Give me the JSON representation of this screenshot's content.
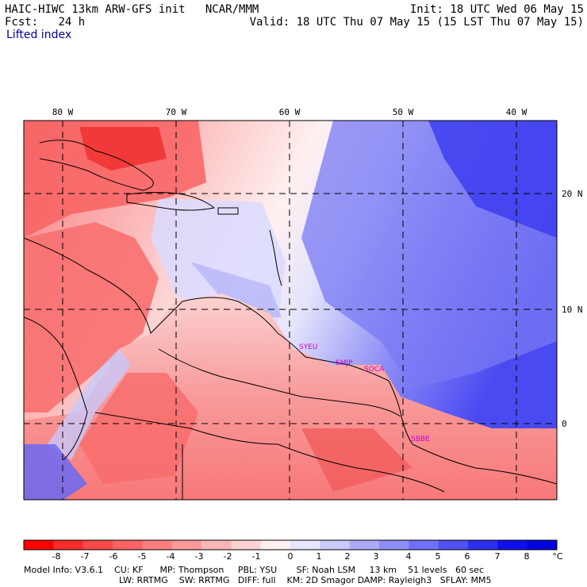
{
  "header": {
    "title": "HAIC-HIWC 13km ARW-GFS init",
    "org": "NCAR/MMM",
    "fcst_label": "Fcst:",
    "fcst_value": "24 h",
    "init": "Init: 18 UTC Wed 06 May 15",
    "valid": "Valid: 18 UTC Thu 07 May 15 (15 LST Thu 07 May 15)",
    "variable": "Lifted index"
  },
  "map": {
    "lon_labels": [
      "80 W",
      "70 W",
      "60 W",
      "50 W",
      "40 W"
    ],
    "lat_labels": [
      "20 N",
      "10 N",
      "0"
    ],
    "stations": [
      "SYEU",
      "SMJP",
      "SOCA",
      "SBBE"
    ],
    "colors": {
      "station": "#cc00cc",
      "grid": "#000000",
      "coast": "#000000"
    }
  },
  "colorbar": {
    "labels": [
      "-8",
      "-7",
      "-6",
      "-5",
      "-4",
      "-3",
      "-2",
      "-1",
      "0",
      "1",
      "2",
      "3",
      "4",
      "5",
      "6",
      "7",
      "8"
    ],
    "unit": "°C",
    "colors": [
      "#ff0000",
      "#ff2a2a",
      "#ff4848",
      "#fa6464",
      "#f87e7e",
      "#f89a9a",
      "#fab6b6",
      "#fcd2d2",
      "#ffefef",
      "#e6e6ff",
      "#cacafa",
      "#acacf6",
      "#8e8ef6",
      "#7070f6",
      "#5050f4",
      "#3030f2",
      "#1010ee",
      "#0000e0"
    ]
  },
  "footer": {
    "line1": "Model Info: V3.6.1    CU: KF      MP: Thompson     PBL: YSU       SF: Noah LSM     13 km    51 levels   60 sec",
    "line2": "LW: RRTMG    SW: RRTMG   DIFF: full    KM: 2D Smagor DAMP: Rayleigh3   SFLAY: MM5"
  }
}
